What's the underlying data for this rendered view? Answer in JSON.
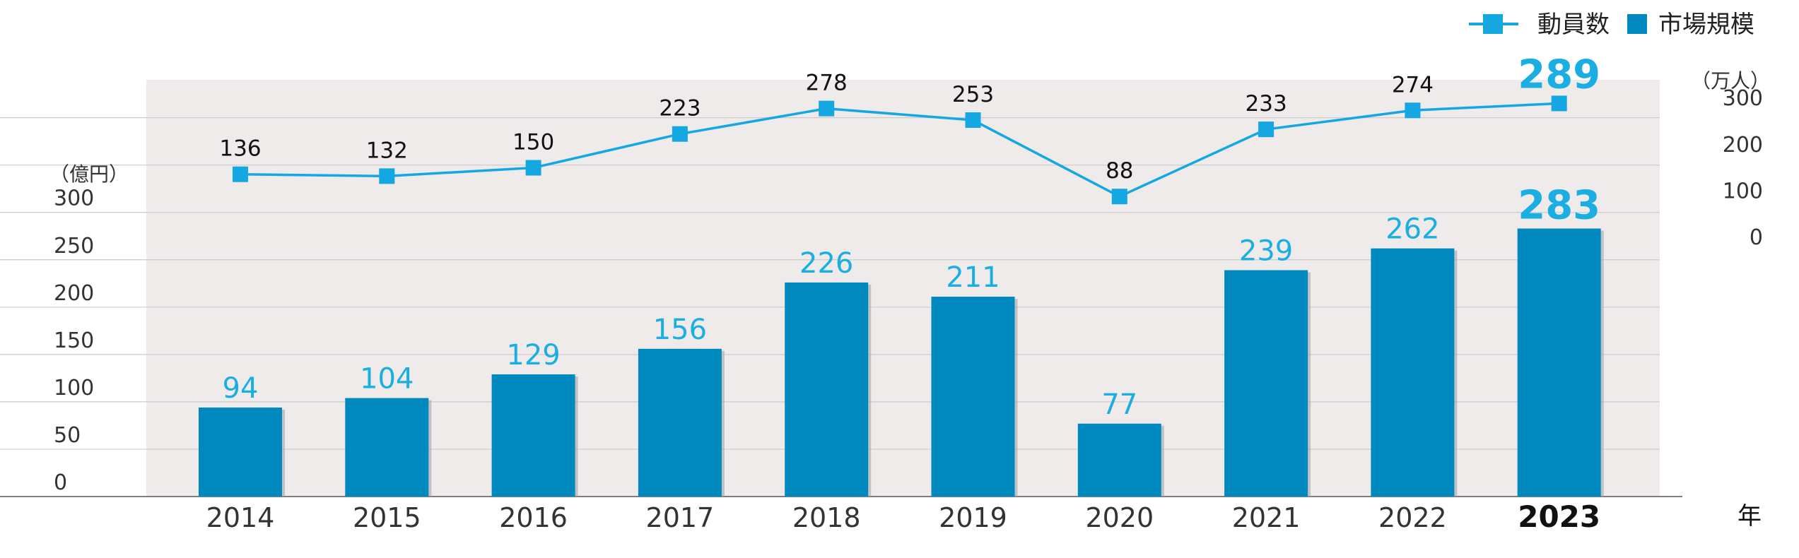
{
  "chart_data": {
    "type": "bar",
    "categories": [
      "2014",
      "2015",
      "2016",
      "2017",
      "2018",
      "2019",
      "2020",
      "2021",
      "2022",
      "2023"
    ],
    "highlight_category": "2023",
    "x_unit_label": "年",
    "legend": {
      "placement": "top-right",
      "items": [
        {
          "label": "動員数",
          "marker": "line-square"
        },
        {
          "label": "市場規模",
          "marker": "square"
        }
      ]
    },
    "series": [
      {
        "name": "市場規模",
        "type": "bar",
        "axis": "left",
        "values": [
          94,
          104,
          129,
          156,
          226,
          211,
          77,
          239,
          262,
          283
        ],
        "color": "#0089BF",
        "label_color": "#1AAEE2"
      },
      {
        "name": "動員数",
        "type": "line",
        "axis": "right",
        "values": [
          136,
          132,
          150,
          223,
          278,
          253,
          88,
          233,
          274,
          289
        ],
        "color": "#14A7E2",
        "label_color": "#111111",
        "highlight_label_color": "#1AAEE2"
      }
    ],
    "left_axis": {
      "unit": "（億円）",
      "ticks": [
        0,
        50,
        100,
        150,
        200,
        250,
        300
      ],
      "range": [
        0,
        440
      ]
    },
    "right_axis": {
      "unit": "（万人）",
      "ticks": [
        0,
        100,
        200,
        300
      ],
      "range": [
        -560,
        340
      ]
    },
    "grid": true,
    "plot_background": "#EEEBEA",
    "grid_color": "#CCCCCC",
    "axis_text_color": "#333333"
  }
}
